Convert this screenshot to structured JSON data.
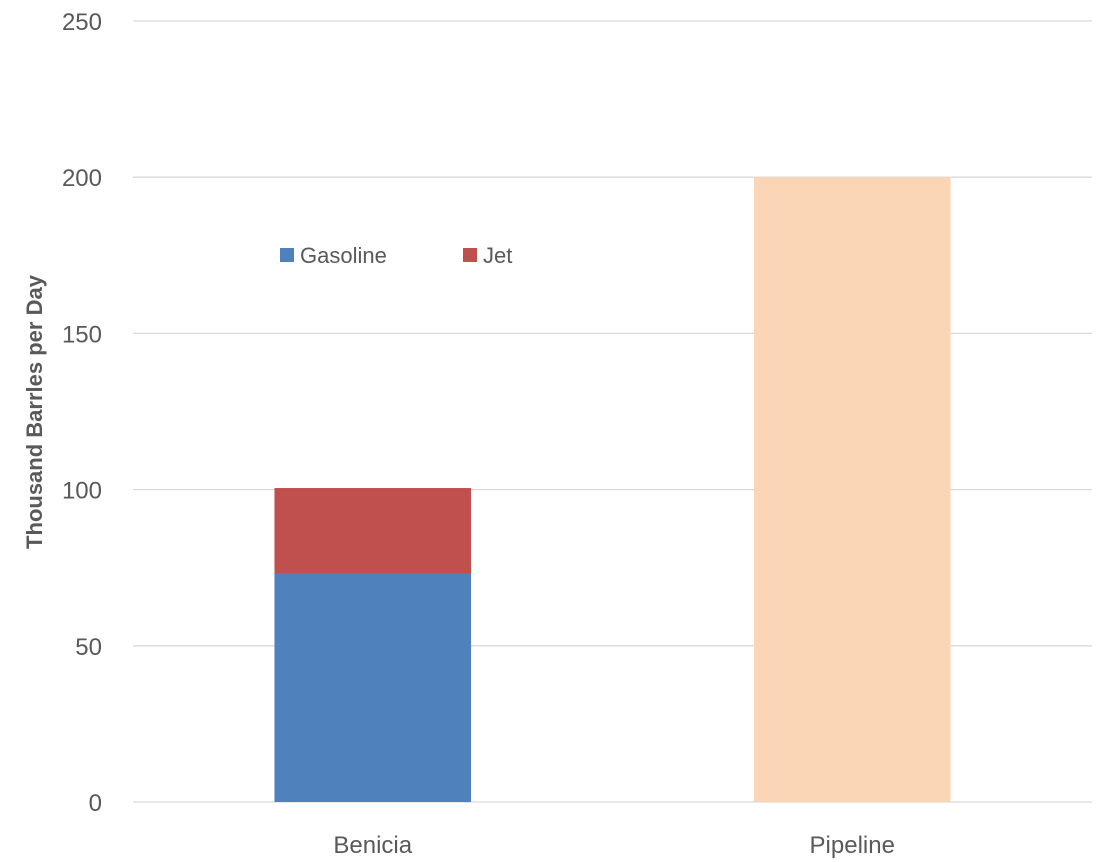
{
  "chart_data": {
    "type": "bar",
    "stacked": true,
    "categories": [
      "Benicia",
      "Pipeline"
    ],
    "series": [
      {
        "name": "Gasoline",
        "color": "#4F81BD",
        "values": [
          73,
          null
        ]
      },
      {
        "name": "Jet",
        "color": "#C0504D",
        "values": [
          27.5,
          null
        ]
      },
      {
        "name": "",
        "color": "#FAD5B6",
        "values": [
          null,
          200
        ],
        "in_legend": false
      }
    ],
    "title": "",
    "xlabel": "",
    "ylabel": "Thousand Barrles per Day",
    "ylim": [
      0,
      250
    ],
    "yticks": [
      "0",
      "50",
      "100",
      "150",
      "200",
      "250"
    ],
    "grid": true,
    "legend_position": "upper-left-inside"
  }
}
